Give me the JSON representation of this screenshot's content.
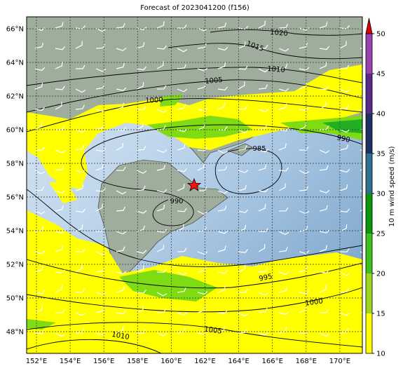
{
  "title": "Forecast of 2023041200 (f156)",
  "map": {
    "lat_labels": [
      "66°N",
      "64°N",
      "62°N",
      "60°N",
      "58°N",
      "56°N",
      "54°N",
      "52°N",
      "50°N",
      "48°N"
    ],
    "lon_labels": [
      "152°E",
      "154°E",
      "156°E",
      "158°E",
      "160°E",
      "162°E",
      "164°E",
      "166°E",
      "168°E",
      "170°E"
    ],
    "contour_labels": [
      "1020",
      "1015",
      "1010",
      "1005",
      "1000",
      "985",
      "990",
      "990",
      "995",
      "1000",
      "1005",
      "1010"
    ]
  },
  "colorbar": {
    "label": "10 m wind speed (m/s)",
    "ticks": [
      10,
      15,
      20,
      25,
      30,
      35,
      40,
      45,
      50
    ],
    "colors": [
      "#ffff00",
      "#9ad61e",
      "#3cc01e",
      "#0a960a",
      "#2c6f8e",
      "#1d3260",
      "#5a2a8a",
      "#9a40b0"
    ],
    "extend_color": "#e00000"
  }
}
